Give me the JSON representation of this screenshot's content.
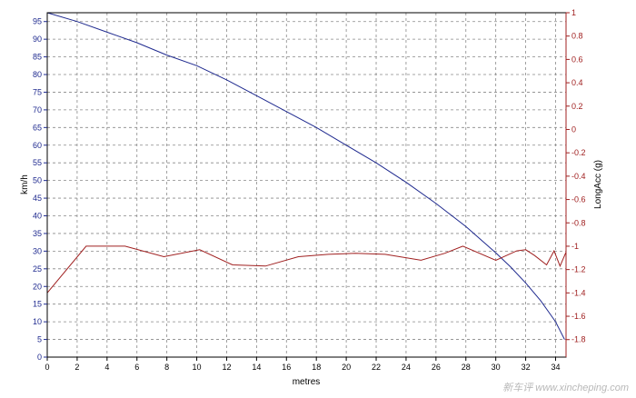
{
  "chart_data": {
    "type": "line",
    "xlabel": "metres",
    "ylabel_left": "km/h",
    "ylabel_right": "LongAcc (g)",
    "xlim": [
      0,
      34.7
    ],
    "ylim_left": [
      0,
      97.5
    ],
    "ylim_right": [
      -1.95,
      1.0
    ],
    "x_ticks": [
      0,
      2,
      4,
      6,
      8,
      10,
      12,
      14,
      16,
      18,
      20,
      22,
      24,
      26,
      28,
      30,
      32,
      34
    ],
    "y_ticks_left": [
      0,
      5,
      10,
      15,
      20,
      25,
      30,
      35,
      40,
      45,
      50,
      55,
      60,
      65,
      70,
      75,
      80,
      85,
      90,
      95
    ],
    "y_ticks_right": [
      1,
      0.8,
      0.6,
      0.4,
      0.2,
      0,
      -0.2,
      -0.4,
      -0.6,
      -0.8,
      -1,
      -1.2,
      -1.4,
      -1.6,
      -1.8
    ],
    "grid": true,
    "colors": {
      "speed": "#1f2a8f",
      "acc": "#a02020",
      "left_axis": "#1f2a8f",
      "right_axis": "#a02020",
      "grid": "#888888",
      "plot_border": "#000000"
    },
    "series": [
      {
        "axis": "left",
        "x": [
          0,
          2,
          4,
          6,
          8,
          10,
          12,
          14,
          16,
          18,
          20,
          22,
          24,
          26,
          28,
          30,
          31,
          32,
          33,
          33.5,
          34,
          34.3,
          34.6
        ],
        "values": [
          97.5,
          95,
          92,
          89,
          85.5,
          82.5,
          78.5,
          74,
          69.5,
          65,
          60,
          55,
          49.5,
          43.5,
          37,
          29.5,
          25.5,
          21,
          16,
          13,
          10,
          7.5,
          5
        ]
      },
      {
        "axis": "right",
        "x": [
          0,
          2.6,
          5.2,
          7.8,
          10.2,
          12.4,
          14.6,
          16.8,
          18.8,
          20.6,
          22.6,
          25.0,
          26.6,
          27.8,
          30.0,
          31.4,
          32.0,
          32.6,
          33.4,
          33.9,
          34.3,
          34.7
        ],
        "values": [
          -1.4,
          -1.0,
          -1.0,
          -1.09,
          -1.03,
          -1.16,
          -1.17,
          -1.09,
          -1.07,
          -1.06,
          -1.07,
          -1.12,
          -1.06,
          -1.0,
          -1.12,
          -1.04,
          -1.03,
          -1.08,
          -1.16,
          -1.04,
          -1.17,
          -1.05
        ]
      }
    ]
  },
  "watermark": {
    "text": "新车评 www.xincheping.com"
  }
}
